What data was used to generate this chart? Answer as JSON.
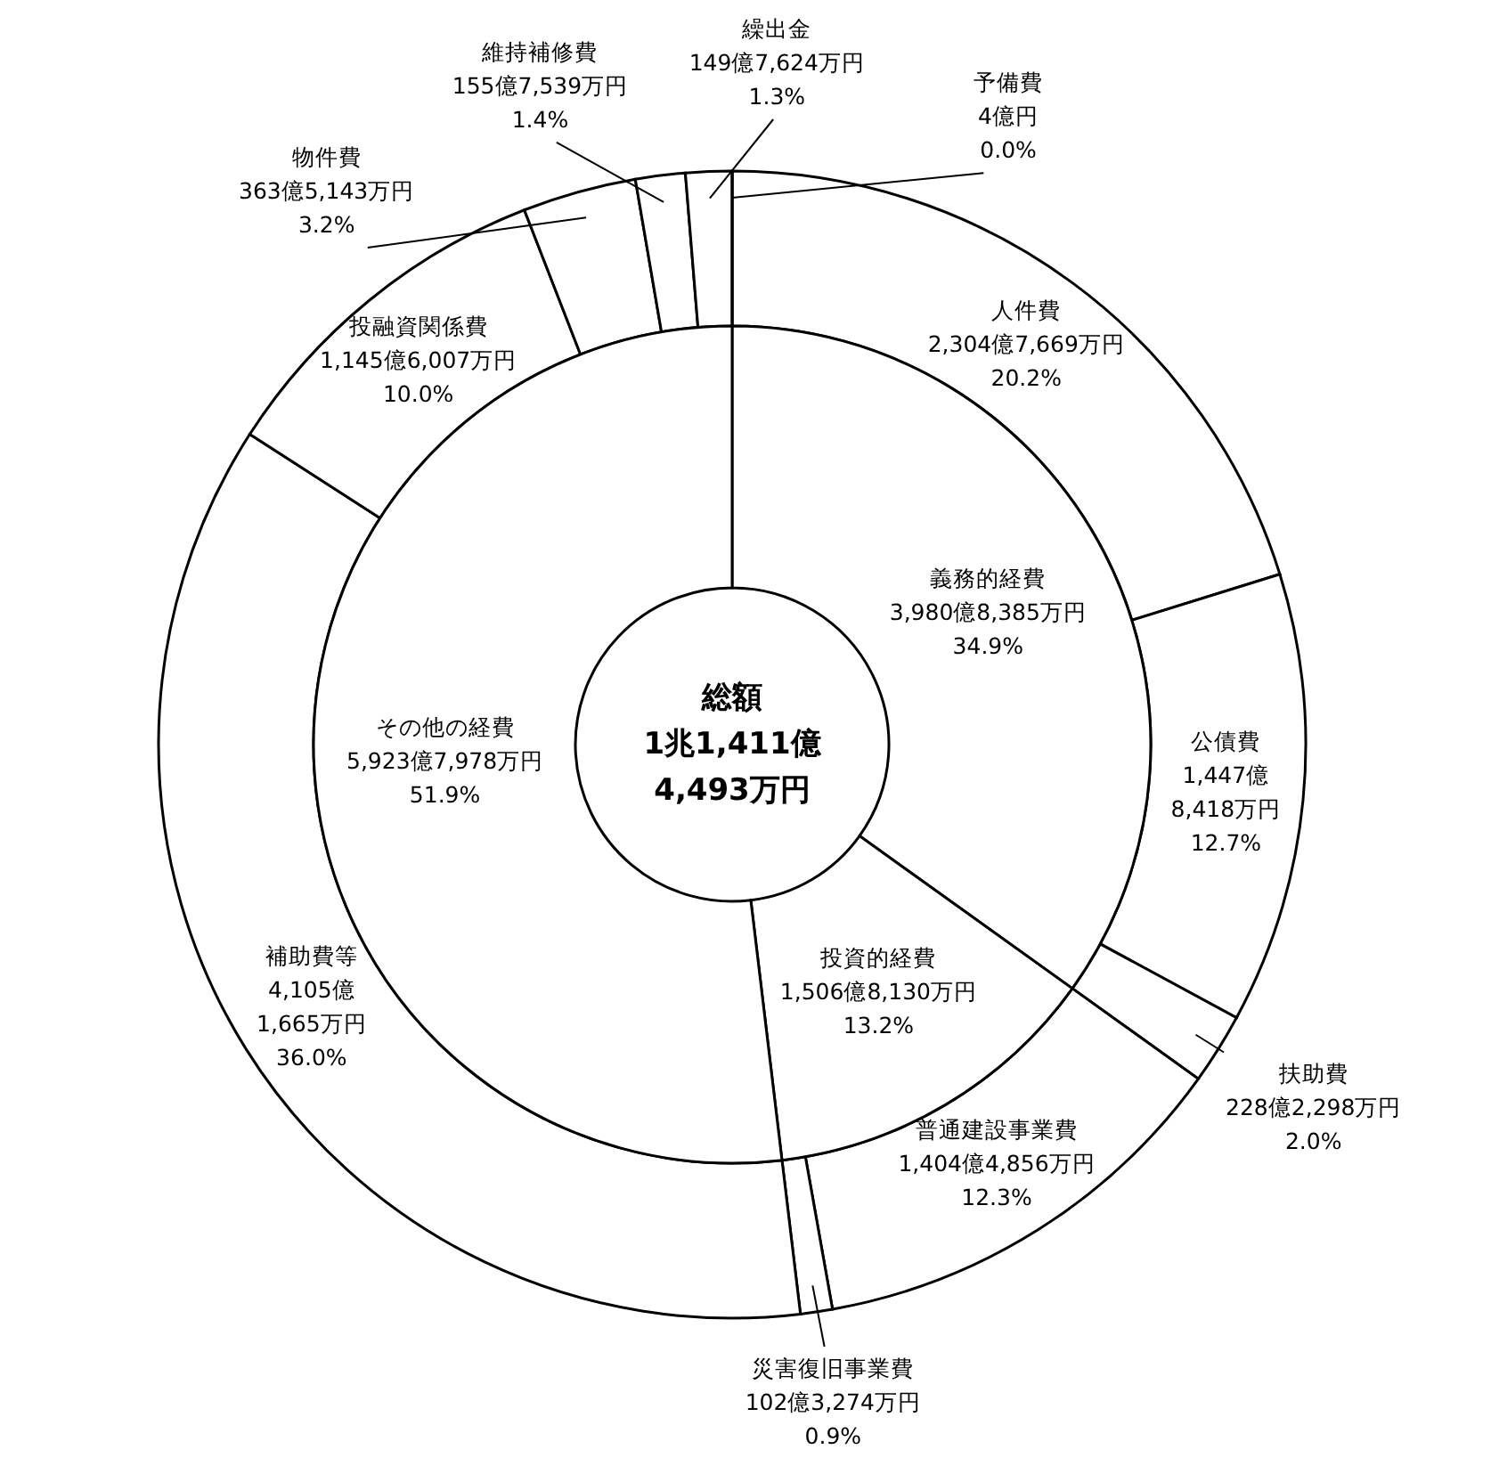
{
  "chart_data": [
    {
      "type": "donut",
      "categories": [
        "人件費",
        "公債費",
        "扶助費",
        "普通建設事業費",
        "災害復旧事業費",
        "補助費等",
        "投融資関係費",
        "物件費",
        "維持補修費",
        "繰出金",
        "予備費"
      ],
      "values": [
        20.2,
        12.7,
        2.0,
        12.3,
        0.9,
        36.0,
        10.0,
        3.2,
        1.4,
        1.3,
        0.0
      ],
      "value_labels": [
        "2,304億7,669万円\n20.2%",
        "1,447億8,418万円\n12.7%",
        "228億2,298万円\n2.0%",
        "1,404億4,856万円\n12.3%",
        "102億3,274万円\n0.9%",
        "4,105億1,665万円\n36.0%",
        "1,145億6,007万円\n10.0%",
        "363億5,143万円\n3.2%",
        "155億7,539万円\n1.4%",
        "149億7,624万円\n1.3%",
        "4億円\n0.0%"
      ],
      "colors": [
        "#ffffff",
        "#ffffff",
        "#ffffff",
        "#ffffff",
        "#ffffff",
        "#ffffff",
        "#ffffff",
        "#ffffff",
        "#ffffff",
        "#ffffff",
        "#ffffff"
      ]
    },
    {
      "type": "donut",
      "title": "総額\n1兆1,411億\n4,493万円",
      "categories": [
        "義務的経費",
        "投資的経費",
        "その他の経費"
      ],
      "values": [
        34.9,
        13.2,
        51.9
      ],
      "value_labels": [
        "3,980億8,385万円\n34.9%",
        "1,506億8,130万円\n13.2%",
        "5,923億7,978万円\n51.9%"
      ],
      "colors": [
        "#ffffff",
        "#ffffff",
        "#ffffff"
      ]
    }
  ]
}
